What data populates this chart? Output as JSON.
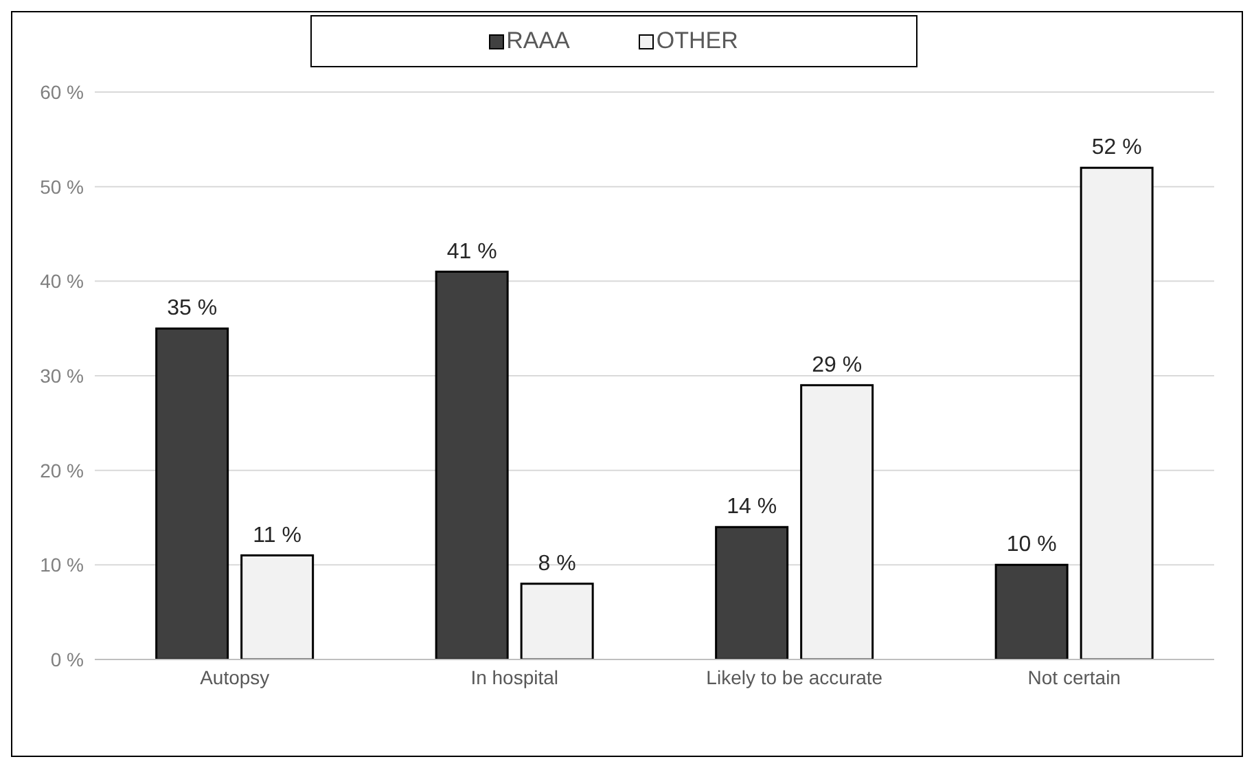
{
  "chart_data": {
    "type": "bar",
    "categories": [
      "Autopsy",
      "In hospital",
      "Likely to be accurate",
      "Not certain"
    ],
    "series": [
      {
        "name": "RAAA",
        "color": "#404040",
        "values": [
          35,
          41,
          14,
          10
        ],
        "value_labels": [
          "35 %",
          "41 %",
          "14 %",
          "10 %"
        ]
      },
      {
        "name": "OTHER",
        "color": "#f2f2f2",
        "values": [
          11,
          8,
          29,
          52
        ],
        "value_labels": [
          "11 %",
          "8 %",
          "29 %",
          "52 %"
        ]
      }
    ],
    "ylim": [
      0,
      60
    ],
    "yticks": [
      {
        "value": 0,
        "label": "0 %"
      },
      {
        "value": 10,
        "label": "10 %"
      },
      {
        "value": 20,
        "label": "20 %"
      },
      {
        "value": 30,
        "label": "30 %"
      },
      {
        "value": 40,
        "label": "40 %"
      },
      {
        "value": 50,
        "label": "50 %"
      },
      {
        "value": 60,
        "label": "60 %"
      }
    ],
    "grid": "y",
    "legend": "top"
  }
}
